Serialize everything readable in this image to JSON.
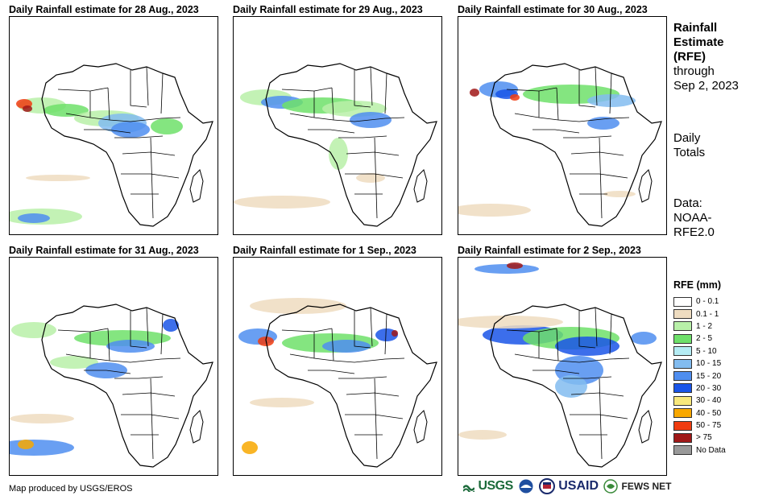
{
  "panels": [
    {
      "title": "Daily Rainfall estimate for 28 Aug., 2023"
    },
    {
      "title": "Daily Rainfall estimate for 29 Aug., 2023"
    },
    {
      "title": "Daily Rainfall estimate for 30 Aug., 2023"
    },
    {
      "title": "Daily Rainfall estimate for 31 Aug., 2023"
    },
    {
      "title": "Daily Rainfall estimate for 1 Sep., 2023"
    },
    {
      "title": "Daily Rainfall estimate for 2 Sep., 2023"
    }
  ],
  "side": {
    "title_line1": "Rainfall",
    "title_line2": "Estimate",
    "title_line3": "(RFE)",
    "through": "through",
    "date": "Sep 2, 2023",
    "daily1": "Daily",
    "daily2": "Totals",
    "data1": "Data:",
    "data2": "NOAA-",
    "data3": "RFE2.0"
  },
  "legend": {
    "title": "RFE (mm)",
    "items": [
      {
        "label": "0 - 0.1",
        "color": "#ffffff"
      },
      {
        "label": "0.1 - 1",
        "color": "#eedcc0"
      },
      {
        "label": "1 - 2",
        "color": "#b8f0a8"
      },
      {
        "label": "2 - 5",
        "color": "#6ee06a"
      },
      {
        "label": "5 - 10",
        "color": "#b4ecf4"
      },
      {
        "label": "10 - 15",
        "color": "#82bcf0"
      },
      {
        "label": "15 - 20",
        "color": "#4f8ef0"
      },
      {
        "label": "20 - 30",
        "color": "#1a55e8"
      },
      {
        "label": "30 - 40",
        "color": "#f8e87c"
      },
      {
        "label": "40 - 50",
        "color": "#f8a800"
      },
      {
        "label": "50 - 75",
        "color": "#f03c10"
      },
      {
        "label": "> 75",
        "color": "#a01818"
      },
      {
        "label": "No Data",
        "color": "#999999"
      }
    ]
  },
  "footer": {
    "credit": "Map produced by USGS/EROS",
    "usgs": "USGS",
    "usaid": "USAID",
    "fews": "FEWS NET"
  }
}
